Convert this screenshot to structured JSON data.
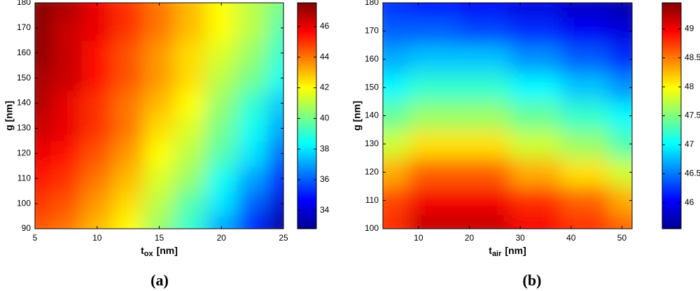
{
  "chart_data": [
    {
      "type": "heatmap",
      "panel": "(a)",
      "xlabel": {
        "main": "t",
        "sub": "ox",
        "rest": "[nm]"
      },
      "ylabel": "g [nm]",
      "xlim": [
        5,
        25
      ],
      "ylim": [
        90,
        180
      ],
      "xticks": [
        5,
        10,
        15,
        20,
        25
      ],
      "yticks": [
        90,
        100,
        110,
        120,
        130,
        140,
        150,
        160,
        170,
        180
      ],
      "clim": [
        32.8,
        47.55
      ],
      "cticks": [
        34,
        36,
        38,
        40,
        42,
        44,
        46
      ],
      "colormap": "jet",
      "x": [
        5,
        7.5,
        10,
        12.5,
        15,
        17.5,
        20,
        22.5,
        25
      ],
      "y": [
        90,
        100,
        110,
        120,
        130,
        140,
        150,
        160,
        170,
        180
      ],
      "z": [
        [
          44.5,
          44,
          43,
          42,
          40.5,
          39,
          37,
          35,
          33
        ],
        [
          45,
          44.5,
          43.5,
          42.5,
          41,
          39.5,
          38,
          36,
          34
        ],
        [
          45.5,
          45,
          44,
          43,
          41.5,
          40.5,
          38.5,
          37,
          35
        ],
        [
          46,
          45.5,
          44.5,
          43.5,
          42,
          41,
          39.5,
          38,
          36
        ],
        [
          46.5,
          46,
          45,
          44,
          42.5,
          41.5,
          40,
          38.5,
          37
        ],
        [
          47,
          46,
          45,
          44,
          43,
          42,
          40.5,
          39,
          37.5
        ],
        [
          47,
          46.5,
          45.5,
          44.5,
          43.5,
          42.5,
          41,
          40,
          38.5
        ],
        [
          47.5,
          46.5,
          45.5,
          44.5,
          43.5,
          42.5,
          41.5,
          40.5,
          39
        ],
        [
          47.5,
          46.5,
          46,
          45,
          44,
          43,
          42,
          41,
          39.5
        ],
        [
          47.5,
          47,
          46,
          45,
          44,
          43,
          42,
          41,
          40
        ]
      ]
    },
    {
      "type": "heatmap",
      "panel": "(b)",
      "xlabel": {
        "main": "t",
        "sub": "air",
        "rest": "[nm]"
      },
      "ylabel": "g [nm]",
      "xlim": [
        3,
        52
      ],
      "ylim": [
        100,
        180
      ],
      "xticks": [
        10,
        20,
        30,
        40,
        50
      ],
      "yticks": [
        100,
        110,
        120,
        130,
        140,
        150,
        160,
        170,
        180
      ],
      "clim": [
        45.55,
        49.45
      ],
      "cticks": [
        46,
        46.5,
        47,
        47.5,
        48,
        48.5,
        49
      ],
      "colormap": "jet",
      "x": [
        3,
        13,
        23,
        33,
        43,
        52
      ],
      "y": [
        100,
        110,
        120,
        130,
        140,
        150,
        160,
        170,
        180
      ],
      "z": [
        [
          48.8,
          49.2,
          49.2,
          49.0,
          48.8,
          48.6
        ],
        [
          48.7,
          49.0,
          49.0,
          48.8,
          48.6,
          48.3
        ],
        [
          48.3,
          48.6,
          48.6,
          48.3,
          48.1,
          47.8
        ],
        [
          47.8,
          48.1,
          48.1,
          47.8,
          47.6,
          47.3
        ],
        [
          47.4,
          47.6,
          47.6,
          47.4,
          47.2,
          47.0
        ],
        [
          47.0,
          47.2,
          47.2,
          47.0,
          46.8,
          46.6
        ],
        [
          46.7,
          46.8,
          46.8,
          46.6,
          46.4,
          46.2
        ],
        [
          46.4,
          46.4,
          46.3,
          46.2,
          46.0,
          45.9
        ],
        [
          46.2,
          46.1,
          46.0,
          45.9,
          45.8,
          45.7
        ]
      ]
    }
  ]
}
